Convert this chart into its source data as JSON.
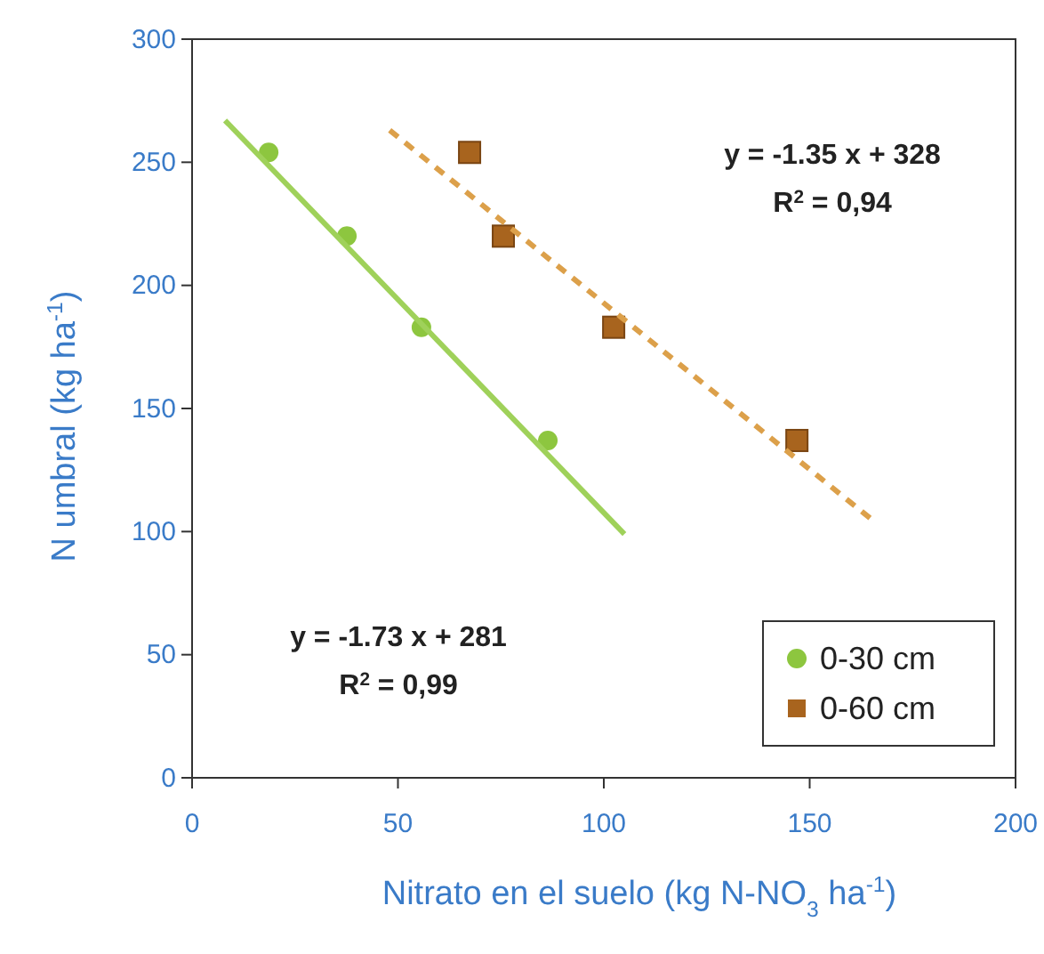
{
  "chart_data": {
    "type": "scatter",
    "xlabel": "Nitrato en el suelo (kg N-NO$_{3}$ ha$^{-1}$)",
    "ylabel": "N umbral (kg ha$^{-1}$)",
    "xlim": [
      0,
      200
    ],
    "xticks": [
      0,
      50,
      100,
      150,
      200
    ],
    "ylim": [
      0,
      300
    ],
    "yticks": [
      0,
      50,
      100,
      150,
      200,
      250,
      300
    ],
    "grid": false,
    "legend": "bottom right",
    "series": [
      {
        "name": "0-30 cm",
        "color": "#8dc63f",
        "marker": "circle",
        "x": [
          18.6,
          37.6,
          55.7,
          86.4
        ],
        "values": [
          254,
          220,
          183,
          137
        ]
      },
      {
        "name": "0-60 cm",
        "color": "#a8641e",
        "marker": "square",
        "x": [
          67.4,
          75.6,
          102.4,
          146.9
        ],
        "values": [
          254,
          220,
          183,
          137
        ]
      },
      {
        "type": "line",
        "color": "#9fd15a",
        "line_style": "solid",
        "x": [
          8,
          105
        ],
        "values": [
          267,
          99
        ]
      },
      {
        "type": "line",
        "color": "#dca04a",
        "line_style": "dashed",
        "x": [
          48,
          165
        ],
        "values": [
          263,
          105
        ]
      }
    ],
    "annotations": [
      "y = -1.35 x + 328",
      "R$^{2}$ = 0,94",
      "y = -1.73 x + 281",
      "R$^{2}$ = 0,99"
    ]
  }
}
